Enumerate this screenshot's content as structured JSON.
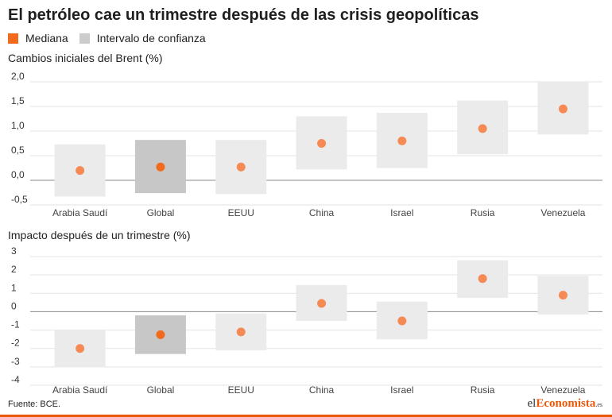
{
  "title": "El petróleo cae un trimestre después de las crisis geopolíticas",
  "legend": [
    {
      "label": "Mediana",
      "color": "#f26a1b"
    },
    {
      "label": "Intervalo de confianza",
      "color": "#cccccc"
    }
  ],
  "colors": {
    "dot": "#f58a54",
    "dot_highlight": "#f26a1b",
    "box": "#ebebeb",
    "box_highlight": "#c7c7c7",
    "grid": "#e3e3e3",
    "zero": "#888888",
    "accent": "#e8590c"
  },
  "source": "Fuente: BCE.",
  "logo": {
    "pre": "el",
    "accent": "Economista",
    "dom": ".es"
  },
  "chart_data": [
    {
      "type": "scatter",
      "title": "Cambios iniciales del Brent (%)",
      "categories": [
        "Arabia Saudí",
        "Global",
        "EEUU",
        "China",
        "Israel",
        "Rusia",
        "Venezuela"
      ],
      "yticks": [
        "2,0",
        "1,5",
        "1,0",
        "0,5",
        "0,0",
        "-0,5"
      ],
      "ylim": [
        -0.5,
        2.0
      ],
      "highlight": "Global",
      "series": [
        {
          "name": "Mediana",
          "values": [
            0.2,
            0.27,
            0.27,
            0.75,
            0.8,
            1.05,
            1.45
          ]
        },
        {
          "name": "Intervalo de confianza",
          "low": [
            -0.33,
            -0.26,
            -0.28,
            0.22,
            0.25,
            0.53,
            0.93
          ],
          "high": [
            0.73,
            0.82,
            0.82,
            1.3,
            1.37,
            1.62,
            2.0
          ]
        }
      ],
      "grid": true
    },
    {
      "type": "scatter",
      "title": "Impacto después de un trimestre (%)",
      "categories": [
        "Arabia Saudí",
        "Global",
        "EEUU",
        "China",
        "Israel",
        "Rusia",
        "Venezuela"
      ],
      "yticks": [
        "3",
        "2",
        "1",
        "0",
        "-1",
        "-2",
        "-3",
        "-4"
      ],
      "ylim": [
        -4,
        3
      ],
      "highlight": "Global",
      "series": [
        {
          "name": "Mediana",
          "values": [
            -2.0,
            -1.25,
            -1.1,
            0.45,
            -0.5,
            1.8,
            0.9
          ]
        },
        {
          "name": "Intervalo de confianza",
          "low": [
            -3.0,
            -2.3,
            -2.1,
            -0.5,
            -1.5,
            0.75,
            -0.15
          ],
          "high": [
            -1.0,
            -0.2,
            -0.1,
            1.45,
            0.55,
            2.8,
            1.95
          ]
        }
      ],
      "grid": true
    }
  ]
}
